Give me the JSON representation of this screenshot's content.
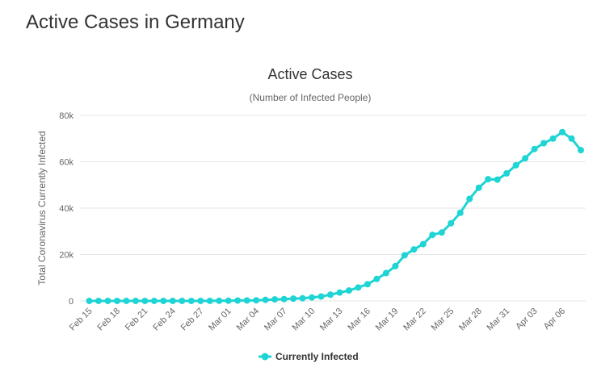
{
  "page": {
    "title": "Active Cases in Germany"
  },
  "colors": {
    "series": "#1ed4d4",
    "grid": "#e6e6e6",
    "text": "#333333",
    "muted": "#666666"
  },
  "chart_data": {
    "type": "line",
    "title": "Active Cases",
    "subtitle": "(Number of Infected People)",
    "xlabel": "",
    "ylabel": "Total Coronavirus Currently Infected",
    "ylim": [
      0,
      80000
    ],
    "yticks": [
      0,
      20000,
      40000,
      60000,
      80000
    ],
    "ytick_labels": [
      "0",
      "20k",
      "40k",
      "60k",
      "80k"
    ],
    "xtick_labels": [
      "Feb 15",
      "Feb 18",
      "Feb 21",
      "Feb 24",
      "Feb 27",
      "Mar 01",
      "Mar 04",
      "Mar 07",
      "Mar 10",
      "Mar 13",
      "Mar 16",
      "Mar 19",
      "Mar 22",
      "Mar 25",
      "Mar 28",
      "Mar 31",
      "Apr 03",
      "Apr 06"
    ],
    "legend": {
      "position": "bottom-center"
    },
    "grid": true,
    "series": [
      {
        "name": "Currently Infected",
        "values": [
          14,
          14,
          14,
          14,
          14,
          14,
          14,
          14,
          14,
          14,
          14,
          14,
          15,
          31,
          60,
          100,
          170,
          210,
          280,
          460,
          660,
          800,
          1000,
          1150,
          1500,
          1900,
          2700,
          3600,
          4500,
          5800,
          7200,
          9500,
          12000,
          15000,
          19700,
          22200,
          24500,
          28500,
          29500,
          33500,
          38000,
          44000,
          48800,
          52500,
          52300,
          55000,
          58500,
          61500,
          65500,
          68000,
          70000,
          72800,
          70000,
          65000
        ]
      }
    ]
  }
}
